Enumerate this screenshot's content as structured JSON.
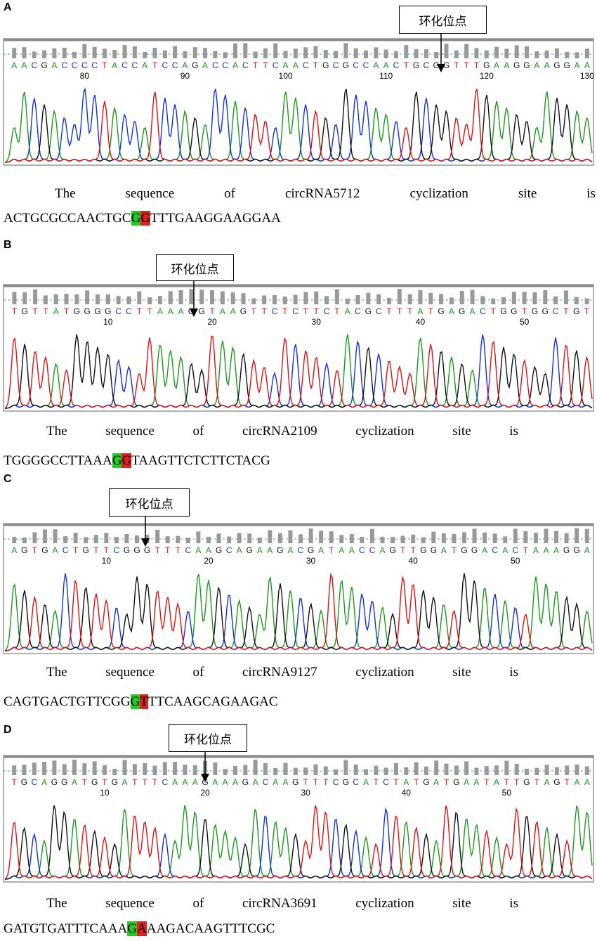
{
  "panels": [
    {
      "label": "A",
      "callout": "环化位点",
      "bases": "AACGACCCCTACCATCCAGACCACTTCAACTGCGCCAACTGCGGTTTGAAGGAAGGAA",
      "positions": [
        80,
        90,
        100,
        110,
        120,
        130
      ],
      "caption": [
        "The",
        "sequence",
        "of",
        "circRNA5712",
        "cyclization",
        "site",
        "is"
      ],
      "sequence": {
        "before": "ACTGCGCCAACTGC",
        "first": "G",
        "second": "G",
        "after": "TTTGAAGGAAGGAA"
      }
    },
    {
      "label": "B",
      "callout": "环化位点",
      "bases": "TGTTATGGGGCCTTAAAGGTAAGTTCTCTTCTACGCTTTATGAGACTGGTGGCTGT",
      "positions": [
        10,
        20,
        30,
        40,
        50
      ],
      "caption": [
        "The",
        "sequence",
        "of",
        "circRNA2109",
        "cyclization",
        "site",
        "is"
      ],
      "sequence": {
        "before": "TGGGGCCTTAAA",
        "first": "G",
        "second": "G",
        "after": "TAAGTTCTCTTCTACG"
      }
    },
    {
      "label": "C",
      "callout": "环化位点",
      "bases": "AGTGACTGTTCGGGTTTCAAGCAGAAGACGATAACCAGTTGGATGGACACTAAAGGA",
      "positions": [
        10,
        20,
        30,
        40,
        50
      ],
      "caption": [
        "The",
        "sequence",
        "of",
        "circRNA9127",
        "cyclization",
        "site",
        "is"
      ],
      "sequence": {
        "before": "CAGTGACTGTTCGG",
        "first": "G",
        "second": "T",
        "after": "TTCAAGCAGAAGAC"
      }
    },
    {
      "label": "D",
      "callout": "环化位点",
      "bases": "TGCAGGATGTGATTTCAAAGAAAGACAAGTTTCGCATCTATGATGAATATTGTAGTAA",
      "positions": [
        10,
        20,
        30,
        40,
        50
      ],
      "caption": [
        "The",
        "sequence",
        "of",
        "circRNA3691",
        "cyclization",
        "site",
        "is"
      ],
      "sequence": {
        "before": "GATGTGATTTCAAA",
        "first": "G",
        "second": "A",
        "after": "AAGACAAGTTTCGC"
      }
    }
  ]
}
